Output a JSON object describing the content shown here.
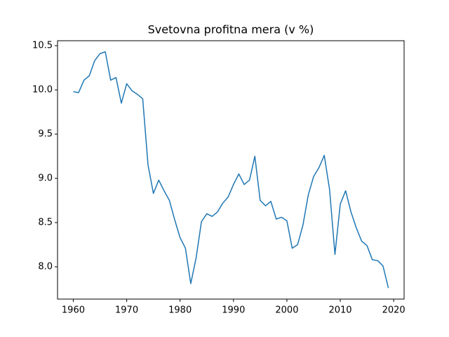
{
  "chart_data": {
    "type": "line",
    "title": "Svetovna profitna mera (v %)",
    "x": [
      1960,
      1961,
      1962,
      1963,
      1964,
      1965,
      1966,
      1967,
      1968,
      1969,
      1970,
      1971,
      1972,
      1973,
      1974,
      1975,
      1976,
      1977,
      1978,
      1979,
      1980,
      1981,
      1982,
      1983,
      1984,
      1985,
      1986,
      1987,
      1988,
      1989,
      1990,
      1991,
      1992,
      1993,
      1994,
      1995,
      1996,
      1997,
      1998,
      1999,
      2000,
      2001,
      2002,
      2003,
      2004,
      2005,
      2006,
      2007,
      2008,
      2009,
      2010,
      2011,
      2012,
      2013,
      2014,
      2015,
      2016,
      2017,
      2018,
      2019
    ],
    "series": [
      {
        "color": "#1f77b4",
        "values": [
          9.98,
          9.97,
          10.11,
          10.16,
          10.33,
          10.41,
          10.43,
          10.11,
          10.14,
          9.85,
          10.07,
          9.99,
          9.95,
          9.9,
          9.15,
          8.83,
          8.98,
          8.86,
          8.75,
          8.53,
          8.33,
          8.21,
          7.81,
          8.1,
          8.51,
          8.6,
          8.57,
          8.62,
          8.72,
          8.79,
          8.93,
          9.05,
          8.93,
          8.98,
          9.25,
          8.75,
          8.69,
          8.74,
          8.54,
          8.56,
          8.52,
          8.21,
          8.25,
          8.47,
          8.81,
          9.02,
          9.12,
          9.26,
          8.87,
          8.14,
          8.71,
          8.86,
          8.62,
          8.44,
          8.29,
          8.24,
          8.08,
          8.07,
          8.01,
          7.76
        ]
      }
    ],
    "xlim": [
      1957.05,
      2021.95
    ],
    "xticks": [
      1960,
      1970,
      1980,
      1990,
      2000,
      2010,
      2020
    ],
    "ylim": [
      7.635,
      10.556
    ],
    "yticks": [
      {
        "value": 8.0,
        "label": "8.0"
      },
      8.5,
      {
        "value": 9.0,
        "label": "9.0"
      },
      9.5,
      {
        "value": 10.0,
        "label": "10.0"
      },
      10.5
    ]
  }
}
